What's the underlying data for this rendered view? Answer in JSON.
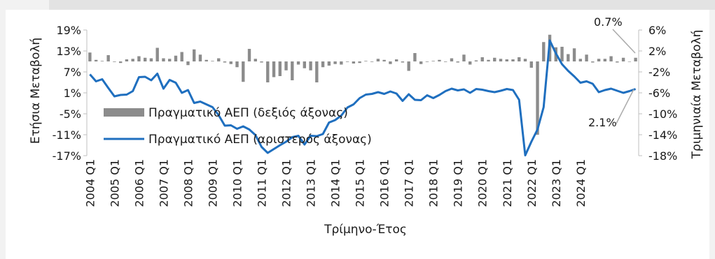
{
  "chart_data": {
    "type": "bar+line",
    "xlabel": "Τρίμηνο-Έτος",
    "ylabel_left": "Ετήσια Μεταβολή",
    "ylabel_right": "Τριμηνιαία Μεταβολή",
    "left_axis": {
      "min": -17,
      "max": 19,
      "ticks": [
        19,
        13,
        7,
        1,
        -5,
        -11,
        -17
      ],
      "tick_labels": [
        "19%",
        "13%",
        "7%",
        "1%",
        "-5%",
        "-11%",
        "-17%"
      ]
    },
    "right_axis": {
      "min": -18,
      "max": 6,
      "ticks": [
        6,
        2,
        -2,
        -6,
        -10,
        -14,
        -18
      ],
      "tick_labels": [
        "6%",
        "2%",
        "-2%",
        "-6%",
        "-10%",
        "-14%",
        "-18%"
      ]
    },
    "x_tick_labels": [
      "2004 Q1",
      "2005 Q1",
      "2006 Q1",
      "2007 Q1",
      "2008 Q1",
      "2009 Q1",
      "2010 Q1",
      "2011 Q1",
      "2012 Q1",
      "2013 Q1",
      "2014 Q1",
      "2015 Q1",
      "2016 Q1",
      "2017 Q1",
      "2018 Q1",
      "2019 Q1",
      "2020 Q1",
      "2021 Q1",
      "2022 Q1",
      "2023 Q1",
      "2024 Q1"
    ],
    "series": [
      {
        "name": "Πραγματικό ΑΕΠ (δεξιός άξονας)",
        "type": "bar",
        "axis": "right",
        "color": "#8c8c8c",
        "values": [
          1.7,
          0.3,
          0.1,
          1.2,
          -0.1,
          -0.3,
          0.4,
          0.5,
          1.0,
          0.7,
          0.6,
          2.6,
          0.6,
          0.5,
          1.1,
          1.8,
          -0.7,
          2.3,
          1.3,
          0.3,
          0.1,
          0.6,
          -0.2,
          -0.5,
          -1.1,
          -3.9,
          2.4,
          0.5,
          -0.2,
          -4.0,
          -3.0,
          -2.8,
          -1.7,
          -3.6,
          -0.6,
          -1.3,
          -1.7,
          -4.0,
          -1.1,
          -0.8,
          -0.5,
          -0.6,
          -0.1,
          -0.4,
          -0.3,
          0.1,
          -0.1,
          0.5,
          0.3,
          -0.5,
          0.4,
          -0.2,
          -1.8,
          1.6,
          -0.5,
          -0.1,
          0.1,
          0.3,
          -0.1,
          0.6,
          -0.2,
          1.3,
          -0.6,
          0.2,
          0.8,
          0.3,
          0.7,
          0.5,
          0.4,
          0.4,
          0.8,
          0.5,
          -1.2,
          -14.0,
          3.7,
          5.1,
          2.7,
          2.8,
          1.4,
          2.5,
          0.5,
          1.3,
          -0.2,
          0.5,
          0.5,
          1.0,
          -0.2,
          0.7,
          0.0,
          0.7
        ]
      },
      {
        "name": "Πραγματικό ΑΕΠ (αριστερός άξονας)",
        "type": "line",
        "axis": "left",
        "color": "#1f6fbf",
        "values": [
          6.3,
          4.3,
          4.9,
          2.4,
          0.0,
          0.4,
          0.5,
          1.5,
          5.5,
          5.6,
          4.6,
          6.5,
          2.2,
          4.7,
          3.9,
          1.0,
          1.8,
          -1.9,
          -1.5,
          -2.3,
          -3.1,
          -5.4,
          -8.4,
          -8.3,
          -9.3,
          -8.6,
          -9.5,
          -11.1,
          -14.5,
          -16.2,
          -15.1,
          -14.0,
          -13.0,
          -11.7,
          -11.3,
          -13.8,
          -11.3,
          -11.4,
          -10.8,
          -7.5,
          -6.8,
          -5.5,
          -3.2,
          -2.3,
          -0.5,
          0.5,
          0.7,
          1.2,
          0.7,
          1.4,
          0.8,
          -1.3,
          0.6,
          -1.0,
          -1.1,
          0.3,
          -0.5,
          0.4,
          1.5,
          2.2,
          1.7,
          2.0,
          1.0,
          2.1,
          1.9,
          1.5,
          1.2,
          1.6,
          2.1,
          1.8,
          -1.0,
          -16.9,
          -13.0,
          -9.5,
          -3.1,
          16.0,
          12.3,
          9.2,
          7.3,
          5.7,
          3.9,
          4.3,
          3.6,
          1.2,
          1.8,
          2.2,
          1.6,
          1.0,
          1.5,
          2.1
        ]
      }
    ],
    "annotations": [
      {
        "text": "0.7%",
        "series": "bar"
      },
      {
        "text": "2.1%",
        "series": "line"
      }
    ],
    "legend": "inside-left"
  }
}
